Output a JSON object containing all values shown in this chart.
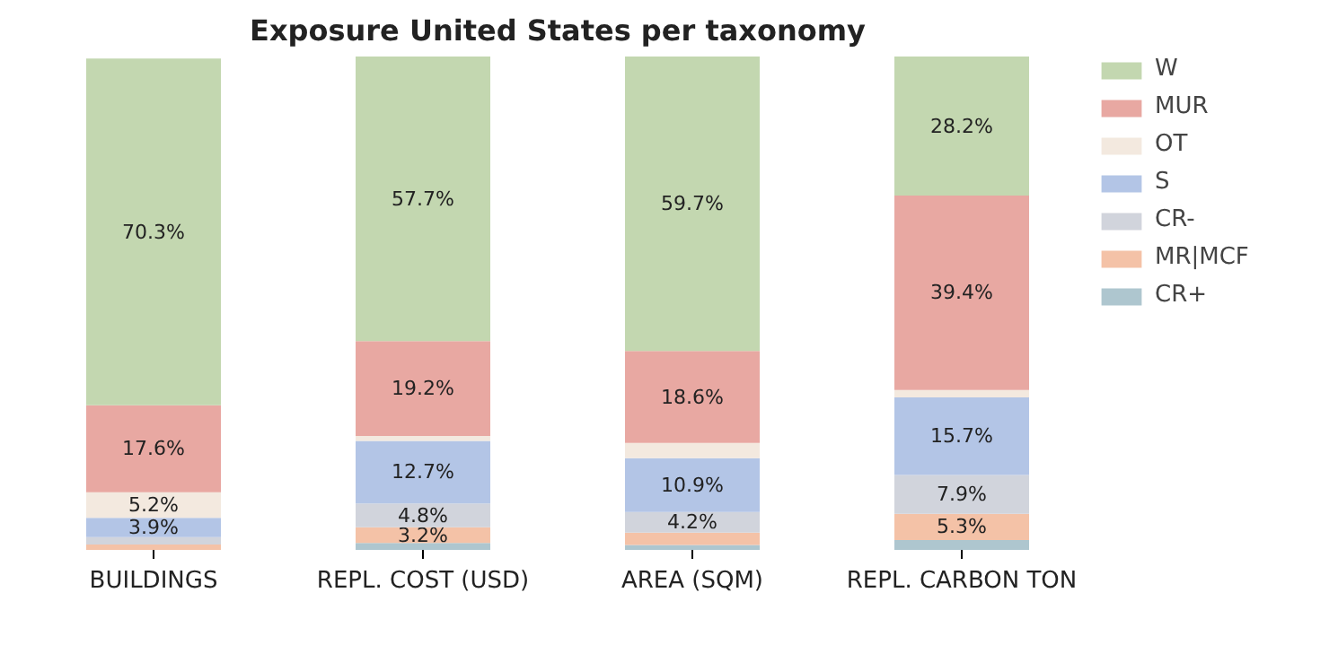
{
  "chart_data": {
    "type": "bar",
    "title": "Exposure United States per taxonomy",
    "categories": [
      "BUILDINGS",
      "REPL. COST (USD)",
      "AREA (SQM)",
      "REPL. CARBON TON"
    ],
    "stacked": true,
    "ylim": [
      0,
      100
    ],
    "tick_labels": "x",
    "grid": false,
    "legend": "top right",
    "series": [
      {
        "name": "CR+",
        "color": "#aec6cf",
        "values": [
          null,
          1.4,
          1.0,
          2.0
        ],
        "value_labels": [
          null,
          null,
          null,
          null
        ]
      },
      {
        "name": "MR|MCF",
        "color": "#f4c2a7",
        "values": [
          1.1,
          3.2,
          2.5,
          5.3
        ],
        "value_labels": [
          null,
          "3.2%",
          null,
          "5.3%"
        ]
      },
      {
        "name": "CR-",
        "color": "#d1d4dc",
        "values": [
          1.5,
          4.8,
          4.2,
          7.9
        ],
        "value_labels": [
          null,
          "4.8%",
          "4.2%",
          "7.9%"
        ]
      },
      {
        "name": "S",
        "color": "#b3c5e6",
        "values": [
          3.9,
          12.7,
          10.9,
          15.7
        ],
        "value_labels": [
          "3.9%",
          "12.7%",
          "10.9%",
          "15.7%"
        ]
      },
      {
        "name": "OT",
        "color": "#f3e9df",
        "values": [
          5.2,
          1.0,
          3.1,
          1.5
        ],
        "value_labels": [
          "5.2%",
          null,
          null,
          null
        ]
      },
      {
        "name": "MUR",
        "color": "#e8a8a2",
        "values": [
          17.6,
          19.2,
          18.6,
          39.4
        ],
        "value_labels": [
          "17.6%",
          "19.2%",
          "18.6%",
          "39.4%"
        ]
      },
      {
        "name": "W",
        "color": "#c3d7b0",
        "values": [
          70.3,
          57.7,
          59.7,
          28.2
        ],
        "value_labels": [
          "70.3%",
          "57.7%",
          "59.7%",
          "28.2%"
        ]
      }
    ]
  }
}
